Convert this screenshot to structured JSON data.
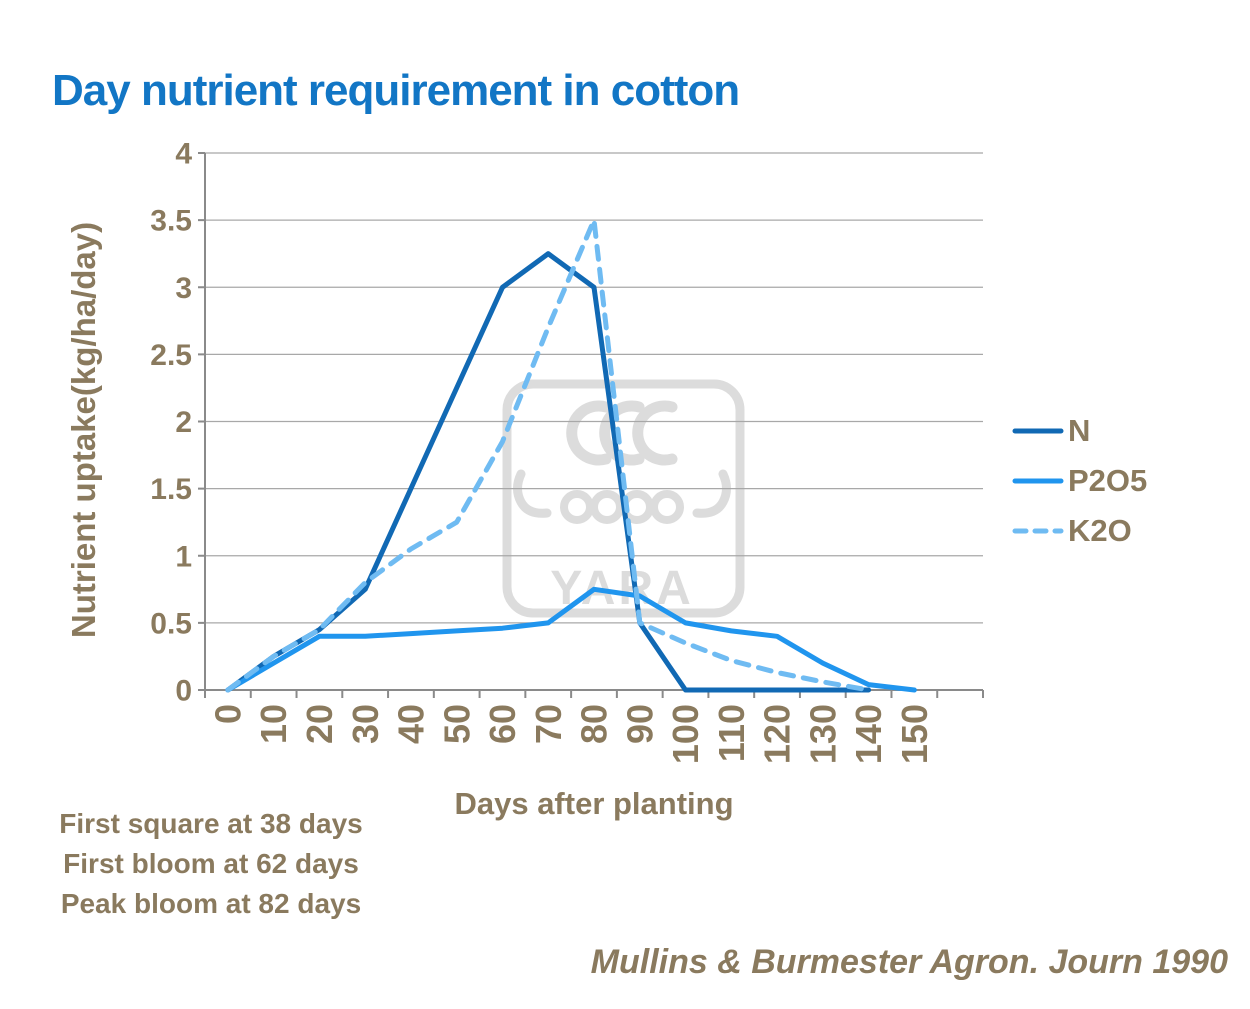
{
  "chart_data": {
    "type": "line",
    "title": "Day nutrient requirement in cotton",
    "xlabel": "Days after planting",
    "ylabel": "Nutrient uptake(kg/ha/day)",
    "x_ticks": [
      "0",
      "10",
      "20",
      "30",
      "40",
      "50",
      "60",
      "70",
      "80",
      "90",
      "100",
      "110",
      "120",
      "130",
      "140",
      "150"
    ],
    "y_ticks": [
      "0",
      "0.5",
      "1",
      "1.5",
      "2",
      "2.5",
      "3",
      "3.5",
      "4"
    ],
    "ylim": [
      0,
      4
    ],
    "xlim": [
      0,
      150
    ],
    "grid": "horizontal",
    "legend_position": "right",
    "series": [
      {
        "name": "N",
        "color": "#1169b4",
        "style": "solid",
        "points": [
          [
            0,
            0
          ],
          [
            10,
            0.25
          ],
          [
            20,
            0.45
          ],
          [
            30,
            0.75
          ],
          [
            40,
            1.5
          ],
          [
            50,
            2.25
          ],
          [
            60,
            3
          ],
          [
            70,
            3.25
          ],
          [
            80,
            3
          ],
          [
            90,
            0.5
          ],
          [
            100,
            0
          ],
          [
            110,
            0
          ],
          [
            120,
            0
          ],
          [
            130,
            0
          ],
          [
            140,
            0
          ]
        ]
      },
      {
        "name": "P2O5",
        "color": "#2095ee",
        "style": "solid",
        "points": [
          [
            0,
            0
          ],
          [
            10,
            0.2
          ],
          [
            20,
            0.4
          ],
          [
            30,
            0.4
          ],
          [
            40,
            0.42
          ],
          [
            50,
            0.44
          ],
          [
            60,
            0.46
          ],
          [
            70,
            0.5
          ],
          [
            80,
            0.75
          ],
          [
            90,
            0.7
          ],
          [
            100,
            0.5
          ],
          [
            110,
            0.44
          ],
          [
            120,
            0.4
          ],
          [
            130,
            0.2
          ],
          [
            140,
            0.04
          ],
          [
            150,
            0
          ]
        ]
      },
      {
        "name": "K2O",
        "color": "#6fbbf2",
        "style": "dashed",
        "points": [
          [
            0,
            0
          ],
          [
            10,
            0.25
          ],
          [
            20,
            0.45
          ],
          [
            30,
            0.8
          ],
          [
            40,
            1.05
          ],
          [
            50,
            1.25
          ],
          [
            60,
            1.85
          ],
          [
            70,
            2.7
          ],
          [
            80,
            3.5
          ],
          [
            90,
            0.5
          ],
          [
            100,
            0.35
          ],
          [
            110,
            0.22
          ],
          [
            120,
            0.13
          ],
          [
            130,
            0.06
          ],
          [
            140,
            0
          ]
        ]
      }
    ],
    "annotations": [
      "First square at 38 days",
      "First bloom at 62 days",
      "Peak bloom at 82 days"
    ],
    "source": "Mullins & Burmester Agron. Journ 1990",
    "watermark": "YARA",
    "colors": {
      "title": "#1276c5",
      "axis_text": "#8a7a5e",
      "gridline": "#a8a8a8",
      "axis_line": "#8a8a8a",
      "watermark": "#dcdcdc",
      "background": "#ffffff"
    }
  }
}
